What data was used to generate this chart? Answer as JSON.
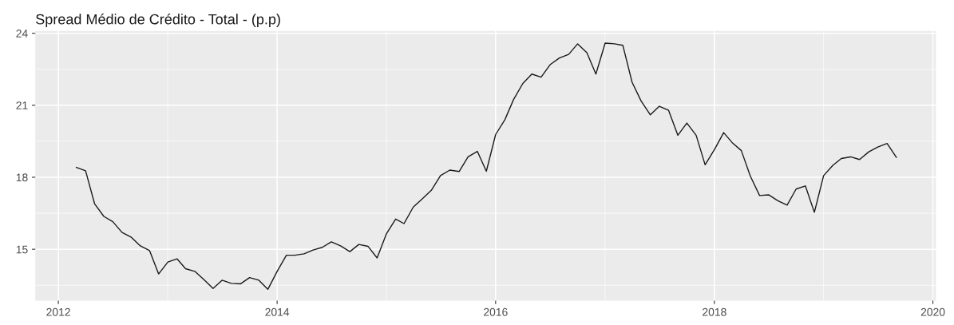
{
  "chart_data": {
    "type": "line",
    "title": "Spread Médio de Crédito - Total - (p.p)",
    "x": [
      "2012-03",
      "2012-04",
      "2012-05",
      "2012-06",
      "2012-07",
      "2012-08",
      "2012-09",
      "2012-10",
      "2012-11",
      "2012-12",
      "2013-01",
      "2013-02",
      "2013-03",
      "2013-04",
      "2013-05",
      "2013-06",
      "2013-07",
      "2013-08",
      "2013-09",
      "2013-10",
      "2013-11",
      "2013-12",
      "2014-01",
      "2014-02",
      "2014-03",
      "2014-04",
      "2014-05",
      "2014-06",
      "2014-07",
      "2014-08",
      "2014-09",
      "2014-10",
      "2014-11",
      "2014-12",
      "2015-01",
      "2015-02",
      "2015-03",
      "2015-04",
      "2015-05",
      "2015-06",
      "2015-07",
      "2015-08",
      "2015-09",
      "2015-10",
      "2015-11",
      "2015-12",
      "2016-01",
      "2016-02",
      "2016-03",
      "2016-04",
      "2016-05",
      "2016-06",
      "2016-07",
      "2016-08",
      "2016-09",
      "2016-10",
      "2016-11",
      "2016-12",
      "2017-01",
      "2017-02",
      "2017-03",
      "2017-04",
      "2017-05",
      "2017-06",
      "2017-07",
      "2017-08",
      "2017-09",
      "2017-10",
      "2017-11",
      "2017-12",
      "2018-01",
      "2018-02",
      "2018-03",
      "2018-04",
      "2018-05",
      "2018-06",
      "2018-07",
      "2018-08",
      "2018-09",
      "2018-10",
      "2018-11",
      "2018-12",
      "2019-01",
      "2019-02",
      "2019-03",
      "2019-04",
      "2019-05",
      "2019-06",
      "2019-07",
      "2019-08",
      "2019-09"
    ],
    "series": [
      {
        "color": "#1a1a1a",
        "values": [
          18.41,
          18.27,
          16.9,
          16.37,
          16.15,
          15.7,
          15.5,
          15.14,
          14.94,
          13.97,
          14.47,
          14.6,
          14.19,
          14.08,
          13.74,
          13.37,
          13.71,
          13.58,
          13.56,
          13.82,
          13.71,
          13.33,
          14.08,
          14.75,
          14.75,
          14.81,
          14.97,
          15.08,
          15.31,
          15.14,
          14.9,
          15.2,
          15.12,
          14.64,
          15.64,
          16.26,
          16.07,
          16.76,
          17.1,
          17.47,
          18.07,
          18.3,
          18.24,
          18.85,
          19.08,
          18.25,
          19.78,
          20.4,
          21.24,
          21.91,
          22.3,
          22.17,
          22.69,
          22.97,
          23.12,
          23.56,
          23.19,
          22.3,
          23.59,
          23.56,
          23.5,
          21.96,
          21.18,
          20.6,
          20.96,
          20.79,
          19.75,
          20.26,
          19.75,
          18.52,
          19.15,
          19.86,
          19.45,
          19.11,
          18.05,
          17.24,
          17.27,
          17.02,
          16.84,
          17.51,
          17.64,
          16.54,
          18.07,
          18.5,
          18.78,
          18.85,
          18.74,
          19.06,
          19.26,
          19.41,
          18.83
        ]
      }
    ],
    "xlim": [
      "2011-10-16",
      "2020-01-11"
    ],
    "xticks": [
      "2012",
      "2014",
      "2016",
      "2018",
      "2020"
    ],
    "ylim": [
      12.86,
      24.1
    ],
    "yticks": [
      15,
      18,
      21,
      24
    ],
    "grid": true,
    "line_style": "solid",
    "marker": "none"
  }
}
